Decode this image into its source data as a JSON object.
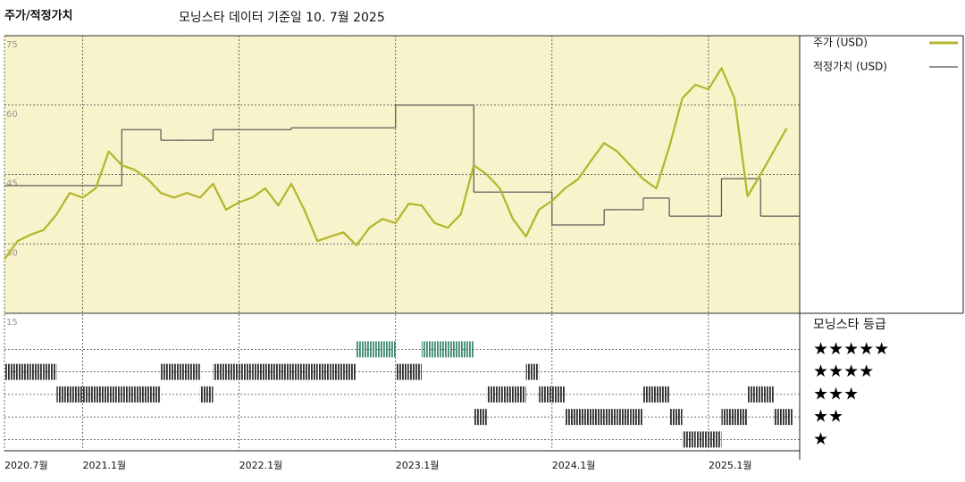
{
  "chart_data": [
    {
      "type": "line",
      "title": "주가/적정가치",
      "subtitle": "모닝스타 데이터 기준일 10. 7월 2025",
      "x": [
        "2020-07",
        "2020-08",
        "2020-09",
        "2020-10",
        "2020-11",
        "2020-12",
        "2021-01",
        "2021-02",
        "2021-03",
        "2021-04",
        "2021-05",
        "2021-06",
        "2021-07",
        "2021-08",
        "2021-09",
        "2021-10",
        "2021-11",
        "2021-12",
        "2022-01",
        "2022-02",
        "2022-03",
        "2022-04",
        "2022-05",
        "2022-06",
        "2022-07",
        "2022-08",
        "2022-09",
        "2022-10",
        "2022-11",
        "2022-12",
        "2023-01",
        "2023-02",
        "2023-03",
        "2023-04",
        "2023-05",
        "2023-06",
        "2023-07",
        "2023-08",
        "2023-09",
        "2023-10",
        "2023-11",
        "2023-12",
        "2024-01",
        "2024-02",
        "2024-03",
        "2024-04",
        "2024-05",
        "2024-06",
        "2024-07",
        "2024-08",
        "2024-09",
        "2024-10",
        "2024-11",
        "2024-12",
        "2025-01",
        "2025-02",
        "2025-03",
        "2025-04",
        "2025-05",
        "2025-06",
        "2025-07"
      ],
      "series": [
        {
          "name": "주가 (USD)",
          "color": "#b3b52a",
          "values": [
            26.7,
            30.6,
            32,
            33,
            36.4,
            41,
            40,
            42,
            50,
            47,
            46,
            44,
            41,
            40,
            41,
            40,
            43,
            37.4,
            39,
            40,
            42,
            38.3,
            43,
            37.4,
            30.6,
            31.6,
            32.5,
            29.7,
            33.5,
            35.4,
            34.5,
            38.7,
            38.3,
            34.5,
            33.5,
            36.4,
            47,
            45,
            42,
            35.4,
            31.6,
            37.4,
            39.3,
            42,
            44,
            48,
            51.8,
            50,
            47,
            44,
            42,
            51,
            61.5,
            64.4,
            63.4,
            68,
            61.5,
            40.3,
            45,
            50,
            55
          ]
        },
        {
          "name": "적정가치 (USD)",
          "color": "#555555",
          "values": [
            42.6,
            42.6,
            42.6,
            42.6,
            42.6,
            42.6,
            42.6,
            42.6,
            42.6,
            54.7,
            54.7,
            54.7,
            52.4,
            52.4,
            52.4,
            52.4,
            54.7,
            54.7,
            54.7,
            54.7,
            54.7,
            54.7,
            55.1,
            55.1,
            55.1,
            55.1,
            55.1,
            55.1,
            55.1,
            55.1,
            60,
            60,
            60,
            60,
            60,
            60,
            41.2,
            41.2,
            41.2,
            41.2,
            41.2,
            41.2,
            34.1,
            34.1,
            34.1,
            34.1,
            37.4,
            37.4,
            37.4,
            39.9,
            39.9,
            36,
            36,
            36,
            36,
            44.1,
            44.1,
            44.1,
            36,
            36,
            36
          ]
        }
      ],
      "xlim": [
        "2020-07",
        "2025-08"
      ],
      "xticks": [
        {
          "value": "2020-07",
          "label": "2020.7월"
        },
        {
          "value": "2021-01",
          "label": "2021.1월"
        },
        {
          "value": "2022-01",
          "label": "2022.1월"
        },
        {
          "value": "2023-01",
          "label": "2023.1월"
        },
        {
          "value": "2024-01",
          "label": "2024.1월"
        },
        {
          "value": "2025-01",
          "label": "2025.1월"
        }
      ],
      "ylim": [
        15,
        75
      ],
      "yticks": [
        15,
        30,
        45,
        60,
        75
      ],
      "grid": true,
      "background": "#f7f3cb"
    },
    {
      "type": "rating",
      "title": "모닝스타 등급",
      "x": [
        "2020-07",
        "2020-08",
        "2020-09",
        "2020-10",
        "2020-11",
        "2020-12",
        "2021-01",
        "2021-02",
        "2021-03",
        "2021-04",
        "2021-05",
        "2021-06",
        "2021-07",
        "2021-08",
        "2021-09",
        "2021-10",
        "2021-11",
        "2021-12",
        "2022-01",
        "2022-02",
        "2022-03",
        "2022-04",
        "2022-05",
        "2022-06",
        "2022-07",
        "2022-08",
        "2022-09",
        "2022-10",
        "2022-11",
        "2022-12",
        "2023-01",
        "2023-02",
        "2023-03",
        "2023-04",
        "2023-05",
        "2023-06",
        "2023-07",
        "2023-08",
        "2023-09",
        "2023-10",
        "2023-11",
        "2023-12",
        "2024-01",
        "2024-02",
        "2024-03",
        "2024-04",
        "2024-05",
        "2024-06",
        "2024-07",
        "2024-08",
        "2024-09",
        "2024-10",
        "2024-11",
        "2024-12",
        "2025-01",
        "2025-02",
        "2025-03",
        "2025-04",
        "2025-05",
        "2025-06",
        "2025-07"
      ],
      "values": [
        4,
        4,
        4,
        4,
        3,
        3,
        3,
        3,
        3,
        3,
        3,
        3,
        4,
        4,
        4,
        3,
        4,
        4,
        4,
        4,
        4,
        4,
        4,
        4,
        4,
        4,
        4,
        5,
        5,
        5,
        4,
        4,
        5,
        5,
        5,
        5,
        2,
        3,
        3,
        3,
        4,
        3,
        3,
        2,
        2,
        2,
        2,
        2,
        2,
        3,
        3,
        2,
        1,
        1,
        1,
        2,
        2,
        3,
        3,
        2,
        2
      ],
      "color": "#2f2f2f",
      "top_color": "#3d8a6e",
      "xlim": [
        "2020-07",
        "2025-08"
      ],
      "ylim": [
        0.5,
        6.6
      ],
      "yticks": [
        {
          "value": 5,
          "label": "★★★★★"
        },
        {
          "value": 4,
          "label": "★★★★"
        },
        {
          "value": 3,
          "label": "★★★"
        },
        {
          "value": 2,
          "label": "★★"
        },
        {
          "value": 1,
          "label": "★"
        }
      ],
      "grid": true
    }
  ]
}
